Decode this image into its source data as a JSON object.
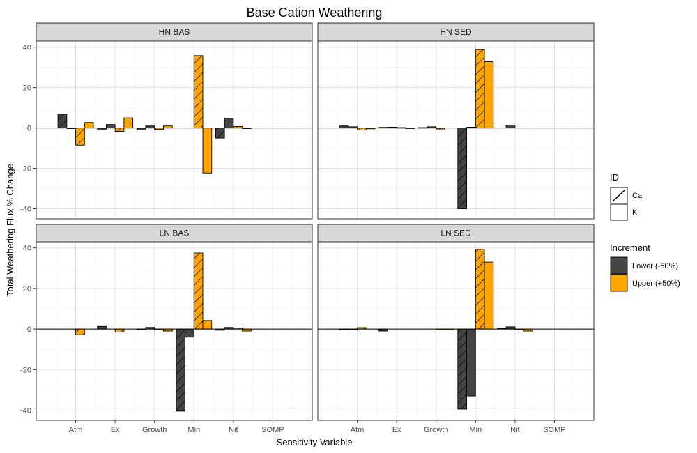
{
  "chart_data": {
    "type": "bar",
    "title": "Base Cation Weathering",
    "xlabel": "Sensitivity Variable",
    "ylabel": "Total Weathering Flux % Change",
    "ylim": [
      -45,
      43
    ],
    "yticks": [
      -40,
      -20,
      0,
      20,
      40
    ],
    "categories": [
      "Atm",
      "Ex",
      "Growth",
      "Min",
      "Nit",
      "SOMP"
    ],
    "grid": true,
    "legends": [
      {
        "title": "ID",
        "items": [
          {
            "label": "Ca",
            "pattern": "hatched"
          },
          {
            "label": "K",
            "pattern": "plain"
          }
        ]
      },
      {
        "title": "Increment",
        "items": [
          {
            "label": "Lower (-50%)",
            "color": "#444444"
          },
          {
            "label": "Upper (+50%)",
            "color": "#FFA500"
          }
        ]
      }
    ],
    "bar_order": [
      "Lower (-50%)|Ca",
      "Lower (-50%)|K",
      "Upper (+50%)|Ca",
      "Upper (+50%)|K"
    ],
    "panels": [
      {
        "strip": "HN BAS",
        "values": {
          "Atm": [
            6.8,
            -0.3,
            -8.5,
            2.7
          ],
          "Ex": [
            -0.6,
            1.7,
            -1.7,
            5.0
          ],
          "Growth": [
            -0.6,
            1.0,
            -0.7,
            1.0
          ],
          "Min": [
            0,
            0,
            35.8,
            -22.3
          ],
          "Nit": [
            -5.0,
            4.8,
            0.7,
            -0.3
          ],
          "SOMP": [
            0,
            0,
            0,
            0
          ]
        }
      },
      {
        "strip": "HN SED",
        "values": {
          "Atm": [
            1.0,
            0.6,
            -1.0,
            -0.4
          ],
          "Ex": [
            0.3,
            0.4,
            0.2,
            -0.2
          ],
          "Growth": [
            0.2,
            0.6,
            -0.5,
            0
          ],
          "Min": [
            -40.0,
            0.4,
            38.8,
            32.8
          ],
          "Nit": [
            0,
            1.4,
            0,
            0
          ],
          "SOMP": [
            0,
            0,
            0,
            0
          ]
        }
      },
      {
        "strip": "LN BAS",
        "values": {
          "Atm": [
            0,
            0,
            -2.8,
            0
          ],
          "Ex": [
            1.3,
            0,
            -1.5,
            0
          ],
          "Growth": [
            -0.4,
            0.8,
            -0.4,
            -1.0
          ],
          "Min": [
            -40.5,
            -4.0,
            37.5,
            4.2
          ],
          "Nit": [
            -0.6,
            0.8,
            0.5,
            -1.0
          ],
          "SOMP": [
            0,
            0,
            0,
            0
          ]
        }
      },
      {
        "strip": "LN SED",
        "values": {
          "Atm": [
            -0.3,
            -0.5,
            0.7,
            0
          ],
          "Ex": [
            -1.0,
            0,
            0,
            0
          ],
          "Growth": [
            0,
            0,
            -0.4,
            -0.4
          ],
          "Min": [
            -39.5,
            -33.0,
            39.3,
            33.0
          ],
          "Nit": [
            0.4,
            1.1,
            -0.4,
            -1.0
          ],
          "SOMP": [
            0,
            0,
            0,
            0
          ]
        }
      }
    ]
  }
}
